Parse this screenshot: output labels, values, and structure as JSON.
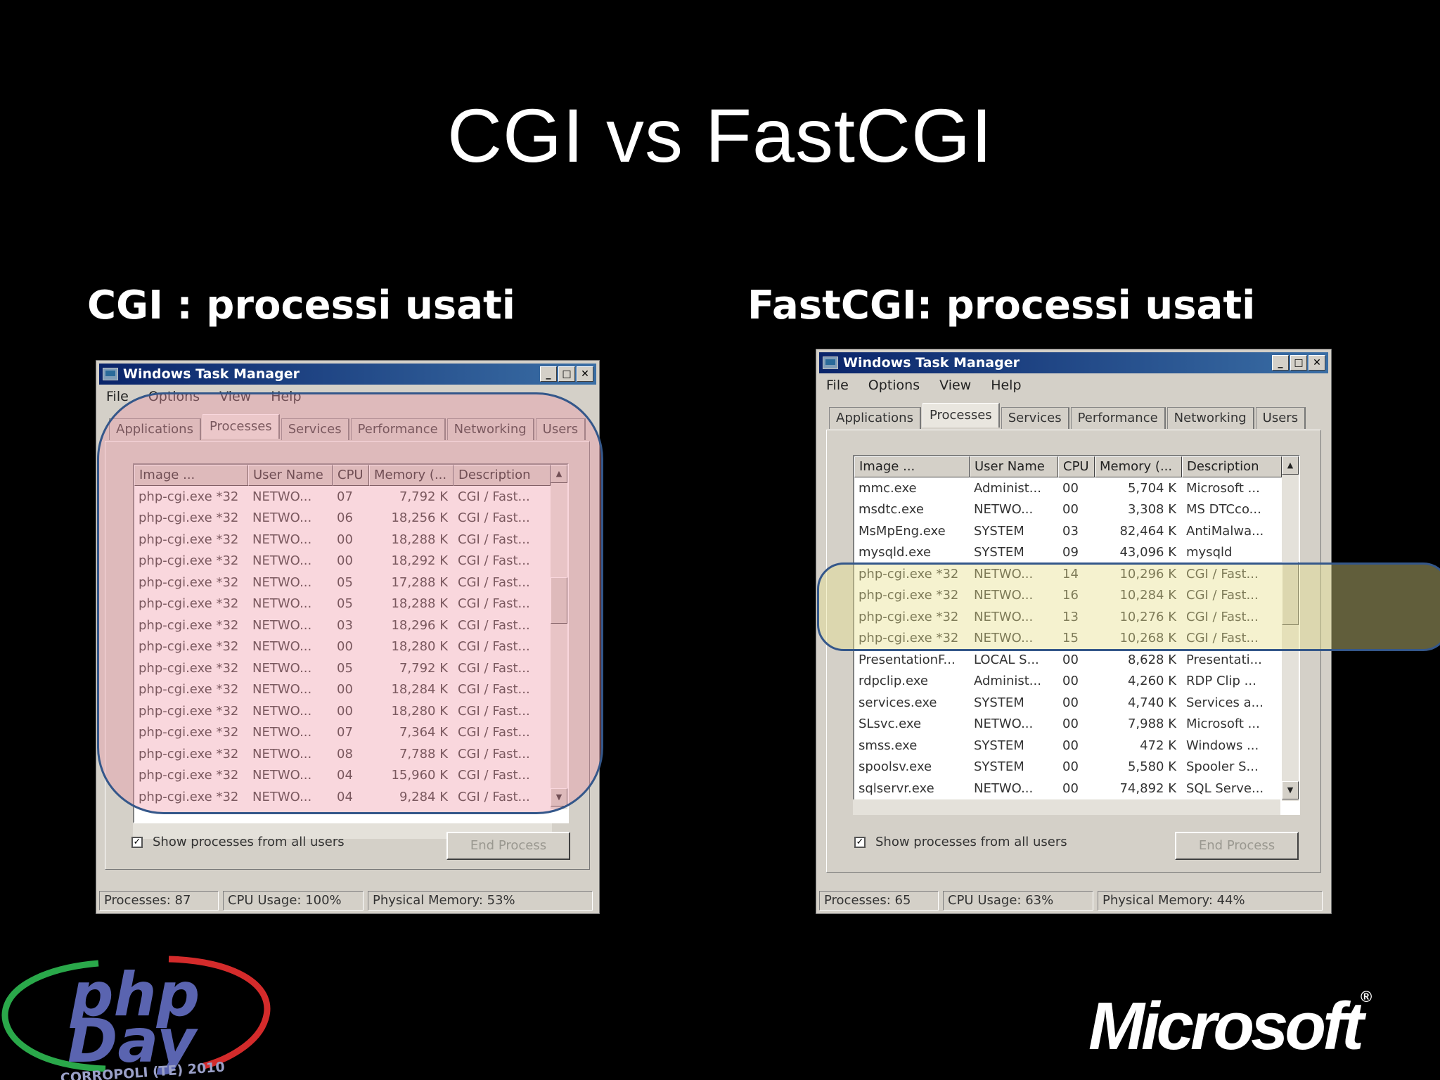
{
  "slide": {
    "title": "CGI vs FastCGI",
    "left_label": "CGI : processi usati",
    "right_label": "FastCGI: processi usati"
  },
  "task_manager_left": {
    "window_title": "Windows Task Manager",
    "menu": [
      "File",
      "Options",
      "View",
      "Help"
    ],
    "tabs": [
      "Applications",
      "Processes",
      "Services",
      "Performance",
      "Networking",
      "Users"
    ],
    "active_tab": "Processes",
    "columns": [
      "Image ...",
      "User Name",
      "CPU",
      "Memory (...",
      "Description"
    ],
    "rows": [
      [
        "php-cgi.exe *32",
        "NETWO...",
        "07",
        "7,792 K",
        "CGI / Fast..."
      ],
      [
        "php-cgi.exe *32",
        "NETWO...",
        "06",
        "18,256 K",
        "CGI / Fast..."
      ],
      [
        "php-cgi.exe *32",
        "NETWO...",
        "00",
        "18,288 K",
        "CGI / Fast..."
      ],
      [
        "php-cgi.exe *32",
        "NETWO...",
        "00",
        "18,292 K",
        "CGI / Fast..."
      ],
      [
        "php-cgi.exe *32",
        "NETWO...",
        "05",
        "17,288 K",
        "CGI / Fast..."
      ],
      [
        "php-cgi.exe *32",
        "NETWO...",
        "05",
        "18,288 K",
        "CGI / Fast..."
      ],
      [
        "php-cgi.exe *32",
        "NETWO...",
        "03",
        "18,296 K",
        "CGI / Fast..."
      ],
      [
        "php-cgi.exe *32",
        "NETWO...",
        "00",
        "18,280 K",
        "CGI / Fast..."
      ],
      [
        "php-cgi.exe *32",
        "NETWO...",
        "05",
        "7,792 K",
        "CGI / Fast..."
      ],
      [
        "php-cgi.exe *32",
        "NETWO...",
        "00",
        "18,284 K",
        "CGI / Fast..."
      ],
      [
        "php-cgi.exe *32",
        "NETWO...",
        "00",
        "18,280 K",
        "CGI / Fast..."
      ],
      [
        "php-cgi.exe *32",
        "NETWO...",
        "07",
        "7,364 K",
        "CGI / Fast..."
      ],
      [
        "php-cgi.exe *32",
        "NETWO...",
        "08",
        "7,788 K",
        "CGI / Fast..."
      ],
      [
        "php-cgi.exe *32",
        "NETWO...",
        "04",
        "15,960 K",
        "CGI / Fast..."
      ],
      [
        "php-cgi.exe *32",
        "NETWO...",
        "04",
        "9,284 K",
        "CGI / Fast..."
      ]
    ],
    "show_all_label": "Show processes from all users",
    "end_process_label": "End Process",
    "status": [
      "Processes: 87",
      "CPU Usage: 100%",
      "Physical Memory: 53%"
    ]
  },
  "task_manager_right": {
    "window_title": "Windows Task Manager",
    "menu": [
      "File",
      "Options",
      "View",
      "Help"
    ],
    "tabs": [
      "Applications",
      "Processes",
      "Services",
      "Performance",
      "Networking",
      "Users"
    ],
    "active_tab": "Processes",
    "columns": [
      "Image ...",
      "User Name",
      "CPU",
      "Memory (...",
      "Description"
    ],
    "rows": [
      [
        "mmc.exe",
        "Administ...",
        "00",
        "5,704 K",
        "Microsoft ..."
      ],
      [
        "msdtc.exe",
        "NETWO...",
        "00",
        "3,308 K",
        "MS DTCco..."
      ],
      [
        "MsMpEng.exe",
        "SYSTEM",
        "03",
        "82,464 K",
        "AntiMalwa..."
      ],
      [
        "mysqld.exe",
        "SYSTEM",
        "09",
        "43,096 K",
        "mysqld"
      ],
      [
        "php-cgi.exe *32",
        "NETWO...",
        "14",
        "10,296 K",
        "CGI / Fast..."
      ],
      [
        "php-cgi.exe *32",
        "NETWO...",
        "16",
        "10,284 K",
        "CGI / Fast..."
      ],
      [
        "php-cgi.exe *32",
        "NETWO...",
        "13",
        "10,276 K",
        "CGI / Fast..."
      ],
      [
        "php-cgi.exe *32",
        "NETWO...",
        "15",
        "10,268 K",
        "CGI / Fast..."
      ],
      [
        "PresentationF...",
        "LOCAL S...",
        "00",
        "8,628 K",
        "Presentati..."
      ],
      [
        "rdpclip.exe",
        "Administ...",
        "00",
        "4,260 K",
        "RDP Clip ..."
      ],
      [
        "services.exe",
        "SYSTEM",
        "00",
        "4,740 K",
        "Services a..."
      ],
      [
        "SLsvc.exe",
        "NETWO...",
        "00",
        "7,988 K",
        "Microsoft ..."
      ],
      [
        "smss.exe",
        "SYSTEM",
        "00",
        "472 K",
        "Windows ..."
      ],
      [
        "spoolsv.exe",
        "SYSTEM",
        "00",
        "5,580 K",
        "Spooler S..."
      ],
      [
        "sqlservr.exe",
        "NETWO...",
        "00",
        "74,892 K",
        "SQL Serve..."
      ]
    ],
    "show_all_label": "Show processes from all users",
    "end_process_label": "End Process",
    "status": [
      "Processes: 65",
      "CPU Usage: 63%",
      "Physical Memory: 44%"
    ]
  },
  "logos": {
    "php_logo_text": [
      "php",
      "Day"
    ],
    "php_logo_caption": "CORROPOLI (TE) 2010",
    "microsoft": "Microsoft"
  },
  "colors": {
    "cgi_highlight": "#f096a5",
    "fastcgi_highlight": "#e6e18c",
    "outline": "#34578a"
  }
}
